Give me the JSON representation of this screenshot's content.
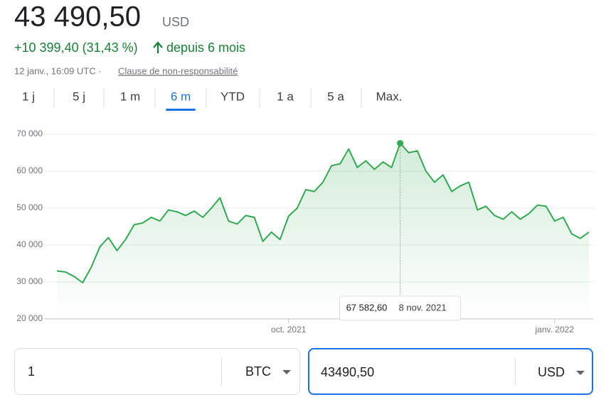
{
  "header": {
    "price": "43 490,50",
    "currency": "USD",
    "change": "+10 399,40 (31,43 %)",
    "period": "depuis 6 mois",
    "timestamp": "12 janv., 16:09 UTC ·",
    "disclaimer": "Clause de non-responsabilité"
  },
  "tabs": [
    {
      "label": "1 j"
    },
    {
      "label": "5 j"
    },
    {
      "label": "1 m"
    },
    {
      "label": "6 m",
      "active": true
    },
    {
      "label": "YTD"
    },
    {
      "label": "1 a"
    },
    {
      "label": "5 a"
    },
    {
      "label": "Max."
    }
  ],
  "chart_data": {
    "type": "line",
    "categories": [
      null,
      null,
      null,
      null,
      null,
      null,
      null,
      null,
      null,
      null,
      null,
      null,
      null,
      null,
      null,
      null,
      null,
      null,
      null,
      null,
      null,
      null,
      null,
      null,
      null,
      null,
      null,
      "oct. 2021",
      null,
      null,
      null,
      null,
      null,
      null,
      null,
      null,
      null,
      null,
      null,
      null,
      null,
      null,
      null,
      null,
      null,
      null,
      null,
      null,
      null,
      null,
      null,
      null,
      null,
      null,
      null,
      null,
      null,
      null,
      "janv. 2022",
      null,
      null,
      null,
      null
    ],
    "series": [
      {
        "color": "#34a853",
        "values": [
          33000,
          32700,
          31500,
          29800,
          34000,
          39500,
          42000,
          38500,
          41500,
          45500,
          46000,
          47500,
          46500,
          49500,
          49000,
          48000,
          49200,
          47500,
          50000,
          52800,
          46500,
          45700,
          48000,
          47500,
          41000,
          43500,
          41500,
          47800,
          50000,
          55000,
          54500,
          57000,
          61500,
          62000,
          66000,
          61000,
          62800,
          60500,
          62500,
          61000,
          67582.6,
          65000,
          65500,
          60000,
          57000,
          59000,
          54500,
          56000,
          57000,
          49500,
          50500,
          48000,
          47000,
          49000,
          47000,
          48500,
          50800,
          50500,
          46500,
          47500,
          43000,
          41800,
          43490.5
        ]
      }
    ],
    "ylim": [
      20000,
      70000
    ],
    "yticks": [
      {
        "value": 20000,
        "label": "20 000"
      },
      {
        "value": 30000,
        "label": "30 000"
      },
      {
        "value": 40000,
        "label": "40 000"
      },
      {
        "value": 50000,
        "label": "50 000"
      },
      {
        "value": 60000,
        "label": "60 000"
      },
      {
        "value": 70000,
        "label": "70 000"
      }
    ],
    "grid": true,
    "tooltip": {
      "index": 40,
      "label": "67 582,60",
      "date": "8 nov. 2021"
    }
  },
  "converter": {
    "from_amount": "1",
    "from_currency": "BTC",
    "to_amount": "43490,50",
    "to_currency": "USD"
  }
}
